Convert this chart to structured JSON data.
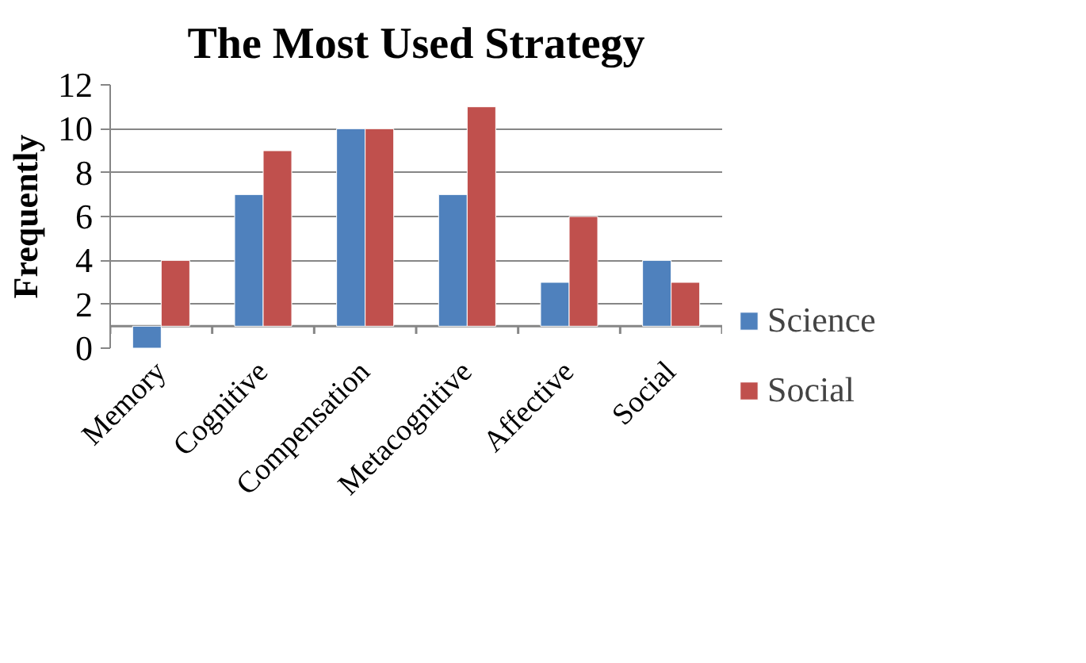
{
  "chart_data": {
    "type": "bar",
    "title": "The Most Used Strategy",
    "ylabel": "Frequently",
    "categories": [
      "Memory",
      "Cognitive",
      "Compensation",
      "Metacognitive",
      "Affective",
      "Social"
    ],
    "series": [
      {
        "name": "Science",
        "color": "#4f81bd",
        "base": [
          1,
          1,
          1,
          1,
          1,
          1
        ],
        "values": [
          -1,
          6,
          9,
          6,
          2,
          3
        ]
      },
      {
        "name": "Social",
        "color": "#c0504d",
        "base": [
          1,
          1,
          1,
          1,
          1,
          1
        ],
        "values": [
          3,
          8,
          9,
          10,
          5,
          2
        ]
      }
    ],
    "ylim": [
      0,
      12
    ],
    "yticks": [
      0,
      2,
      4,
      6,
      8,
      10,
      12
    ],
    "grid": "y",
    "legend": "right"
  }
}
